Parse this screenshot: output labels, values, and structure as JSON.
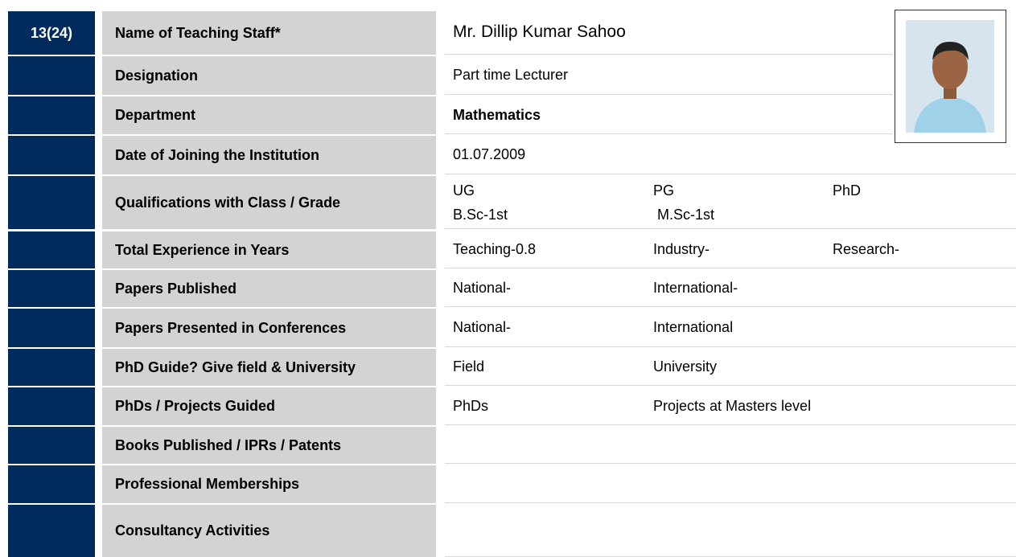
{
  "staff_index": "13(24)",
  "rows": [
    {
      "label": "Name of Teaching Staff*",
      "values": [
        "Mr. Dillip Kumar Sahoo"
      ]
    },
    {
      "label": "Designation",
      "values": [
        "Part time Lecturer"
      ]
    },
    {
      "label": "Department",
      "values": [
        "Mathematics"
      ]
    },
    {
      "label": "Date of Joining the Institution",
      "values": [
        "01.07.2009"
      ]
    },
    {
      "label": "Qualifications with Class / Grade",
      "values": [
        "UG",
        "PG",
        "PhD"
      ],
      "second_line": [
        "B.Sc-1st",
        "M.Sc-1st"
      ]
    },
    {
      "label": "Total Experience in Years",
      "values": [
        "Teaching-0.8",
        "Industry-",
        "Research-"
      ]
    },
    {
      "label": "Papers Published",
      "values": [
        "National-",
        "International-"
      ]
    },
    {
      "label": "Papers Presented in Conferences",
      "values": [
        "National-",
        "International"
      ]
    },
    {
      "label": "PhD Guide? Give field & University",
      "values": [
        "Field",
        "University"
      ]
    },
    {
      "label": "PhDs / Projects Guided",
      "values": [
        "PhDs",
        "Projects at Masters level"
      ]
    },
    {
      "label": "Books Published / IPRs / Patents",
      "values": []
    },
    {
      "label": "Professional Memberships",
      "values": []
    },
    {
      "label": "Consultancy Activities",
      "values": []
    }
  ]
}
